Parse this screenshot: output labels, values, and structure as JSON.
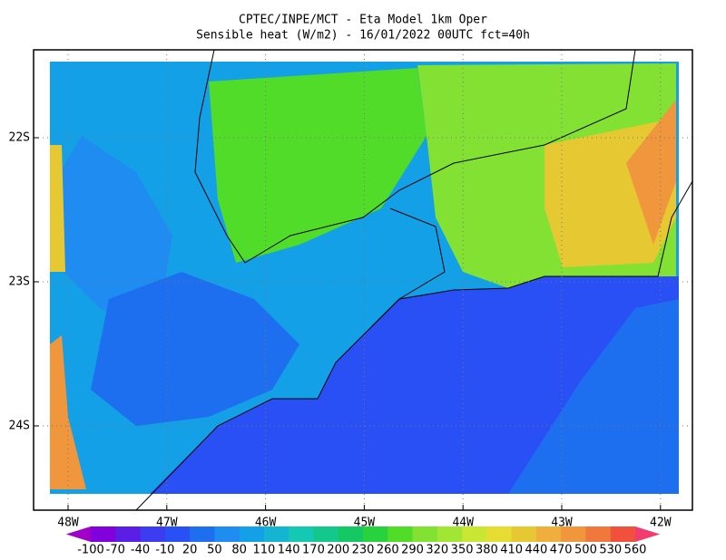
{
  "title": [
    "CPTEC/INPE/MCT -  Eta Model 1km Oper",
    "Sensible heat (W/m2) - 16/01/2022 00UTC fct=40h"
  ],
  "map": {
    "lon_labels": [
      "48W",
      "47W",
      "46W",
      "45W",
      "44W",
      "43W",
      "42W"
    ],
    "lat_labels": [
      "22S",
      "23S",
      "24S"
    ]
  },
  "colorbar": {
    "levels": [
      -100,
      -70,
      -40,
      -10,
      20,
      50,
      80,
      110,
      140,
      170,
      200,
      230,
      260,
      290,
      320,
      350,
      380,
      410,
      440,
      470,
      500,
      530,
      560
    ],
    "colors": [
      "#a000c8",
      "#8200dc",
      "#5a1ee6",
      "#3c3cf0",
      "#2850f5",
      "#1e6ef0",
      "#1e8cf0",
      "#14a0e6",
      "#14b4d2",
      "#14c8b4",
      "#14c88c",
      "#14c864",
      "#28d23c",
      "#50dc28",
      "#82e132",
      "#a0e632",
      "#c8e632",
      "#e6dc32",
      "#e6c832",
      "#f0af3c",
      "#f0963c",
      "#f0783c",
      "#f0503c",
      "#f03c6e"
    ]
  }
}
